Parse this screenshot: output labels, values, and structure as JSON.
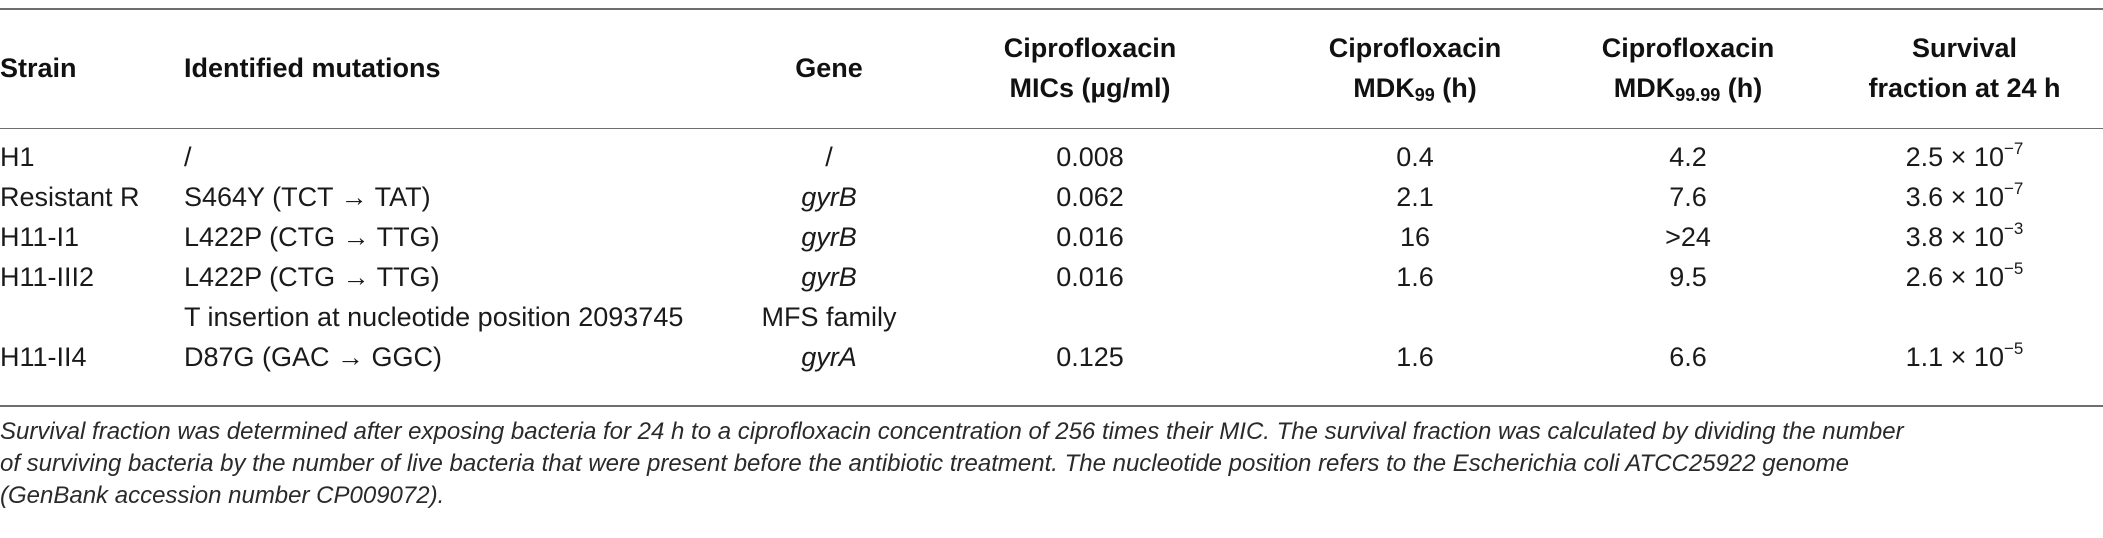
{
  "table": {
    "headers": {
      "strain": "Strain",
      "mutations": "Identified mutations",
      "gene": "Gene",
      "mic_line1": "Ciprofloxacin",
      "mic_line2": "MICs (µg/ml)",
      "mdk99_line1": "Ciprofloxacin",
      "mdk99_base": "MDK",
      "mdk99_sub": "99",
      "mdk99_unit": " (h)",
      "mdk9999_line1": "Ciprofloxacin",
      "mdk9999_base": "MDK",
      "mdk9999_sub": "99.99",
      "mdk9999_unit": " (h)",
      "surv_line1": "Survival",
      "surv_line2": "fraction at 24 h"
    },
    "rows": [
      {
        "strain": "H1",
        "mutation": "/",
        "gene": "/",
        "mic": "0.008",
        "mdk99": "0.4",
        "mdk9999": "4.2",
        "surv_base": "2.5 × 10",
        "surv_exp": "−7"
      },
      {
        "strain": "Resistant R",
        "mutation": "S464Y (TCT → TAT)",
        "gene": "gyrB",
        "mic": "0.062",
        "mdk99": "2.1",
        "mdk9999": "7.6",
        "surv_base": "3.6 × 10",
        "surv_exp": "−7"
      },
      {
        "strain": "H11-I1",
        "mutation": "L422P (CTG → TTG)",
        "gene": "gyrB",
        "mic": "0.016",
        "mdk99": "16",
        "mdk9999": ">24",
        "surv_base": "3.8 × 10",
        "surv_exp": "−3"
      },
      {
        "strain": "H11-III2",
        "mutation": "L422P (CTG → TTG)",
        "gene": "gyrB",
        "mic": "0.016",
        "mdk99": "1.6",
        "mdk9999": "9.5",
        "surv_base": "2.6 × 10",
        "surv_exp": "−5"
      },
      {
        "strain": "",
        "mutation": "T insertion at nucleotide position 2093745",
        "gene": "MFS family",
        "mic": "",
        "mdk99": "",
        "mdk9999": "",
        "surv_base": "",
        "surv_exp": ""
      },
      {
        "strain": "H11-II4",
        "mutation": "D87G (GAC → GGC)",
        "gene": "gyrA",
        "mic": "0.125",
        "mdk99": "1.6",
        "mdk9999": "6.6",
        "surv_base": "1.1 × 10",
        "surv_exp": "−5"
      }
    ]
  },
  "footnote": {
    "line1": "Survival fraction was determined after exposing bacteria for 24 h to a ciprofloxacin concentration of 256 times their MIC. The survival fraction was calculated by dividing the number",
    "line2": "of surviving bacteria by the number of live bacteria that were present before the antibiotic treatment. The nucleotide position refers to the Escherichia coli ATCC25922 genome",
    "line3": "(GenBank accession number CP009072)."
  }
}
